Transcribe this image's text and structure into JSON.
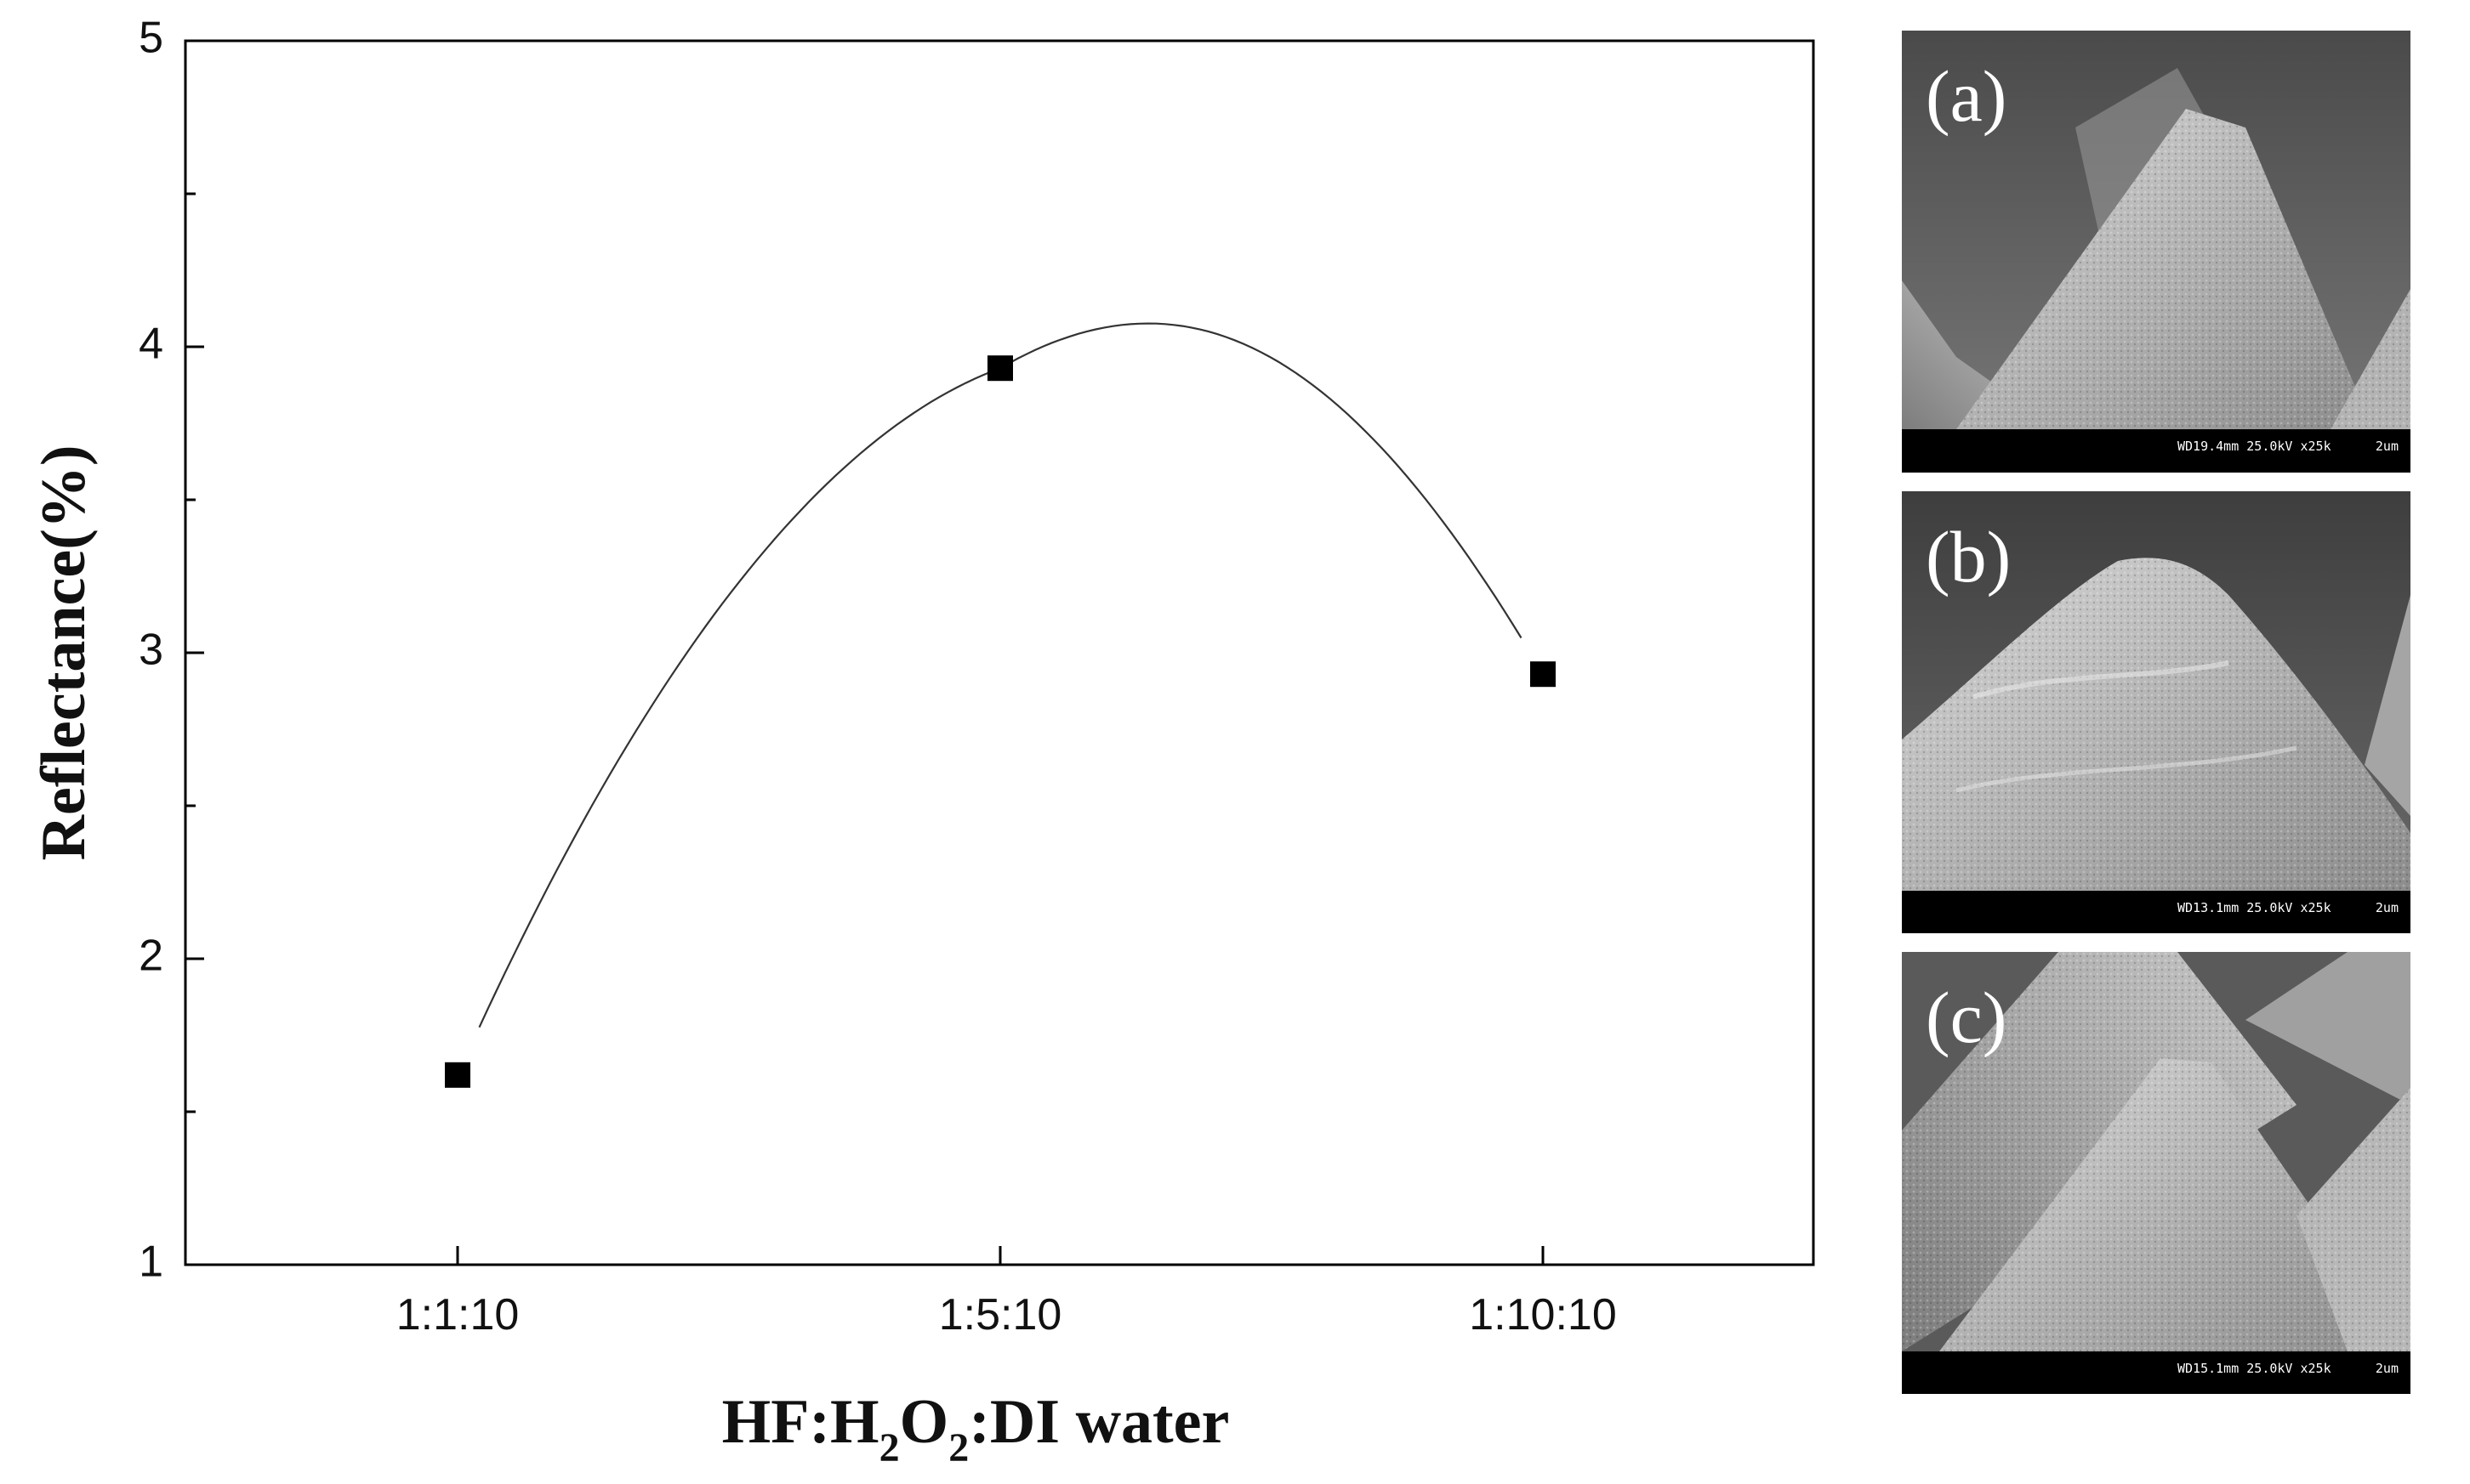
{
  "chart_data": {
    "type": "line",
    "categories": [
      "1:1:10",
      "1:5:10",
      "1:10:10"
    ],
    "values": [
      1.62,
      3.93,
      2.93
    ],
    "xlabel": {
      "base": "HF:H",
      "sub1": "2",
      "mid": "O",
      "sub2": "2",
      "rest": ":DI water"
    },
    "ylabel": "Reflectance(%)",
    "ylim": [
      1,
      5
    ],
    "yticks": [
      1,
      2,
      3,
      4,
      5
    ],
    "marker": "square",
    "line": "smooth",
    "grid": false,
    "colors": {
      "marker": "#000000",
      "line": "#333333",
      "axis": "#000000"
    }
  },
  "sem_panels": [
    {
      "label": "(a)",
      "caption": "WD19.4mm 25.0kV x25k",
      "scale": "2um"
    },
    {
      "label": "(b)",
      "caption": "WD13.1mm 25.0kV x25k",
      "scale": "2um"
    },
    {
      "label": "(c)",
      "caption": "WD15.1mm 25.0kV x25k",
      "scale": "2um"
    }
  ]
}
